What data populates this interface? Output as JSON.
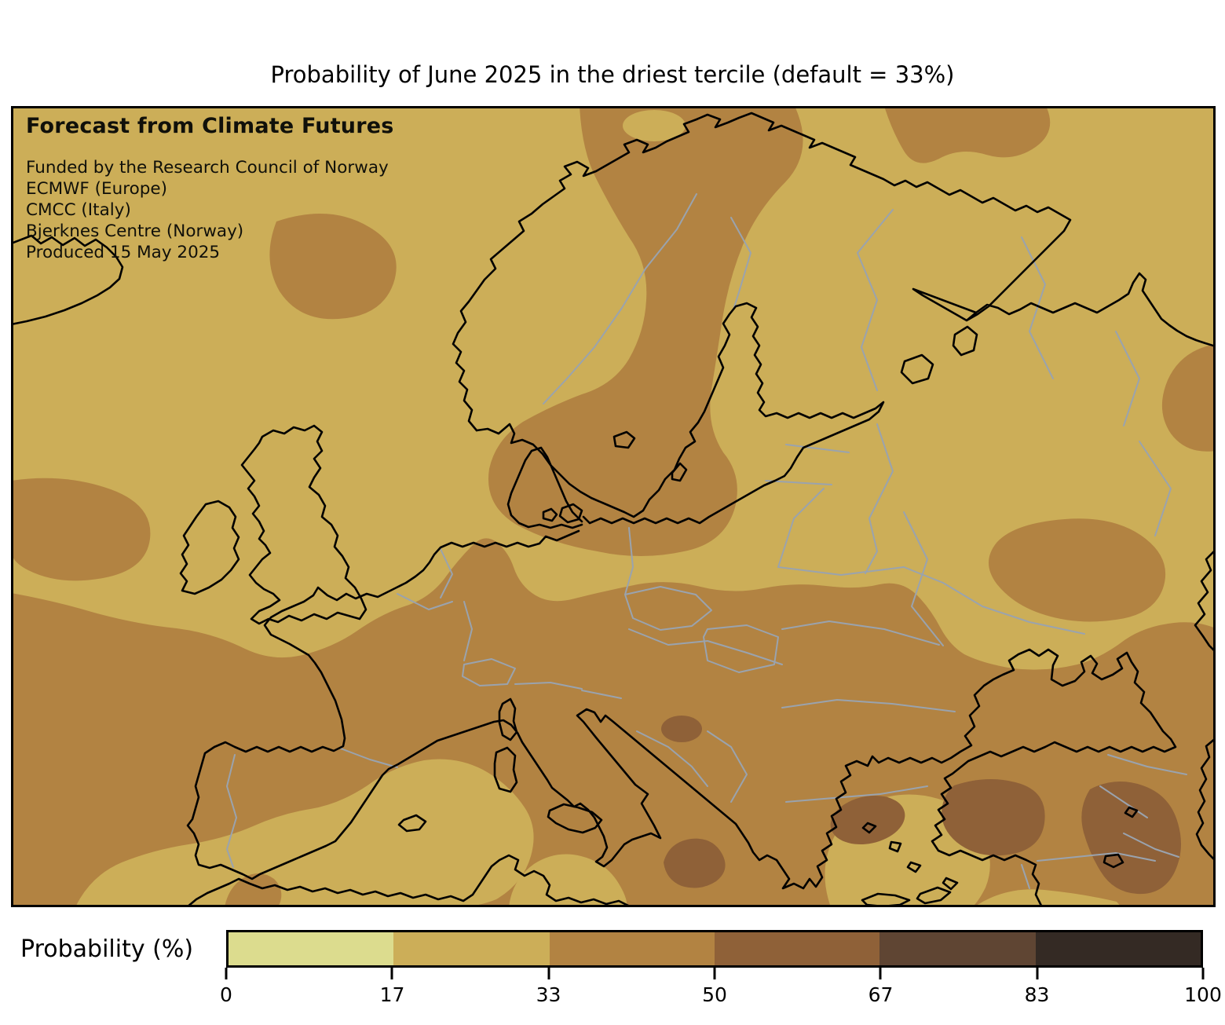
{
  "title": "Probability of June 2025 in the driest tercile (default = 33%)",
  "map_overlay": {
    "heading": "Forecast from Climate Futures",
    "lines": [
      "Funded by the Research Council of Norway",
      "ECMWF (Europe)",
      "CMCC (Italy)",
      "Bjerknes Centre (Norway)",
      "Produced 15 May 2025"
    ]
  },
  "colorbar": {
    "label": "Probability (%)",
    "ticks": [
      0,
      17,
      33,
      50,
      67,
      83,
      100
    ],
    "segments": [
      {
        "range": "0-17",
        "color": "#dcdc8e"
      },
      {
        "range": "17-33",
        "color": "#ccae58"
      },
      {
        "range": "33-50",
        "color": "#b28342"
      },
      {
        "range": "50-67",
        "color": "#8f6138"
      },
      {
        "range": "67-83",
        "color": "#5f4533"
      },
      {
        "range": "83-100",
        "color": "#342a24"
      }
    ]
  },
  "map_colors": {
    "class_17_33": "#ccae58",
    "class_33_50": "#b28342",
    "class_50_67": "#8f6138",
    "coastline": "#000000",
    "country_border": "#9aa3ae"
  },
  "chart_data": {
    "type": "heatmap",
    "subtype": "filled-contour probability map",
    "region": "Europe, North Atlantic, Mediterranean, Black Sea",
    "title": "Probability of June 2025 in the driest tercile (default = 33%)",
    "colorbar_label": "Probability (%)",
    "colorbar_ticks": [
      0,
      17,
      33,
      50,
      67,
      83,
      100
    ],
    "bin_edges_percent": [
      0,
      17,
      33,
      50,
      67,
      83,
      100
    ],
    "bin_colors": [
      "#dcdc8e",
      "#ccae58",
      "#b28342",
      "#8f6138",
      "#5f4533",
      "#342a24"
    ],
    "classes_visible_on_map": [
      "17-33",
      "33-50",
      "50-67"
    ],
    "spatial_summary": "Background over northern and eastern Europe is the 17-33% class; a 33-50% band covers Scandinavia's interior, Denmark and the southern Baltic, and most of western, southern and central Europe, Iberia, Italy, the Balkans, Turkey and the Black Sea; 50-67% patches occur over Bosnia, the Ionian Sea, western and central Anatolia and the Caucasus; lighter 17-33% pockets over SE Spain, south of Sicily, the Aegean and north of the Black Sea."
  }
}
